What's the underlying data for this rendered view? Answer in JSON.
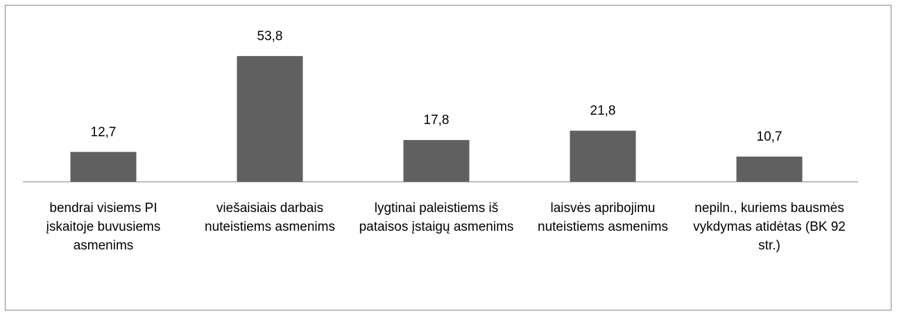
{
  "chart_data": {
    "type": "bar",
    "categories": [
      "bendrai visiems PI įskaitoje buvusiems asmenims",
      "viešaisiais darbais nuteistiems asmenims",
      "lygtinai paleistiems iš pataisos įstaigų asmenims",
      "laisvės apribojimu nuteistiems asmenims",
      "nepiln., kuriems bausmės vykdymas atidėtas (BK 92 str.)"
    ],
    "values": [
      12.7,
      53.8,
      17.8,
      21.8,
      10.7
    ],
    "value_labels": [
      "12,7",
      "53,8",
      "17,8",
      "21,8",
      "10,7"
    ],
    "color": "#606060",
    "ylim": [
      0,
      60
    ]
  }
}
